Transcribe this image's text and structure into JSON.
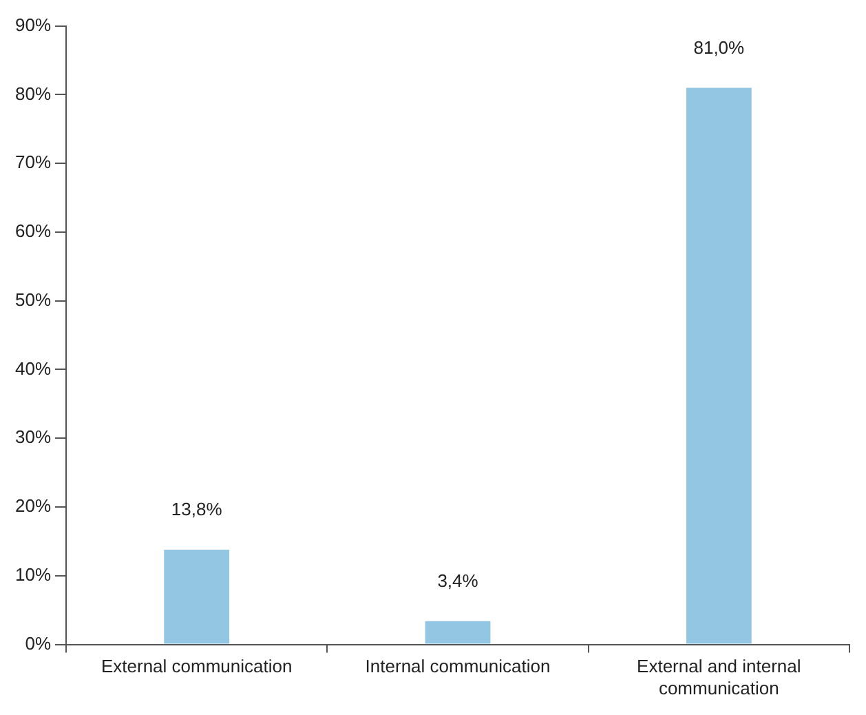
{
  "chart_data": {
    "type": "bar",
    "categories": [
      "External communication",
      "Internal communication",
      "External and internal communication"
    ],
    "values": [
      13.8,
      3.4,
      81.0
    ],
    "value_labels": [
      "13,8%",
      "3,4%",
      "81,0%"
    ],
    "color": "#93c6e2",
    "ylim": [
      0,
      90
    ],
    "yticks": [
      {
        "value": 0,
        "label": "0%"
      },
      {
        "value": 10,
        "label": "10%"
      },
      {
        "value": 20,
        "label": "20%"
      },
      {
        "value": 30,
        "label": "30%"
      },
      {
        "value": 40,
        "label": "40%"
      },
      {
        "value": 50,
        "label": "50%"
      },
      {
        "value": 60,
        "label": "60%"
      },
      {
        "value": 70,
        "label": "70%"
      },
      {
        "value": 80,
        "label": "80%"
      },
      {
        "value": 90,
        "label": "90%"
      }
    ],
    "grid": false,
    "legend": false
  }
}
